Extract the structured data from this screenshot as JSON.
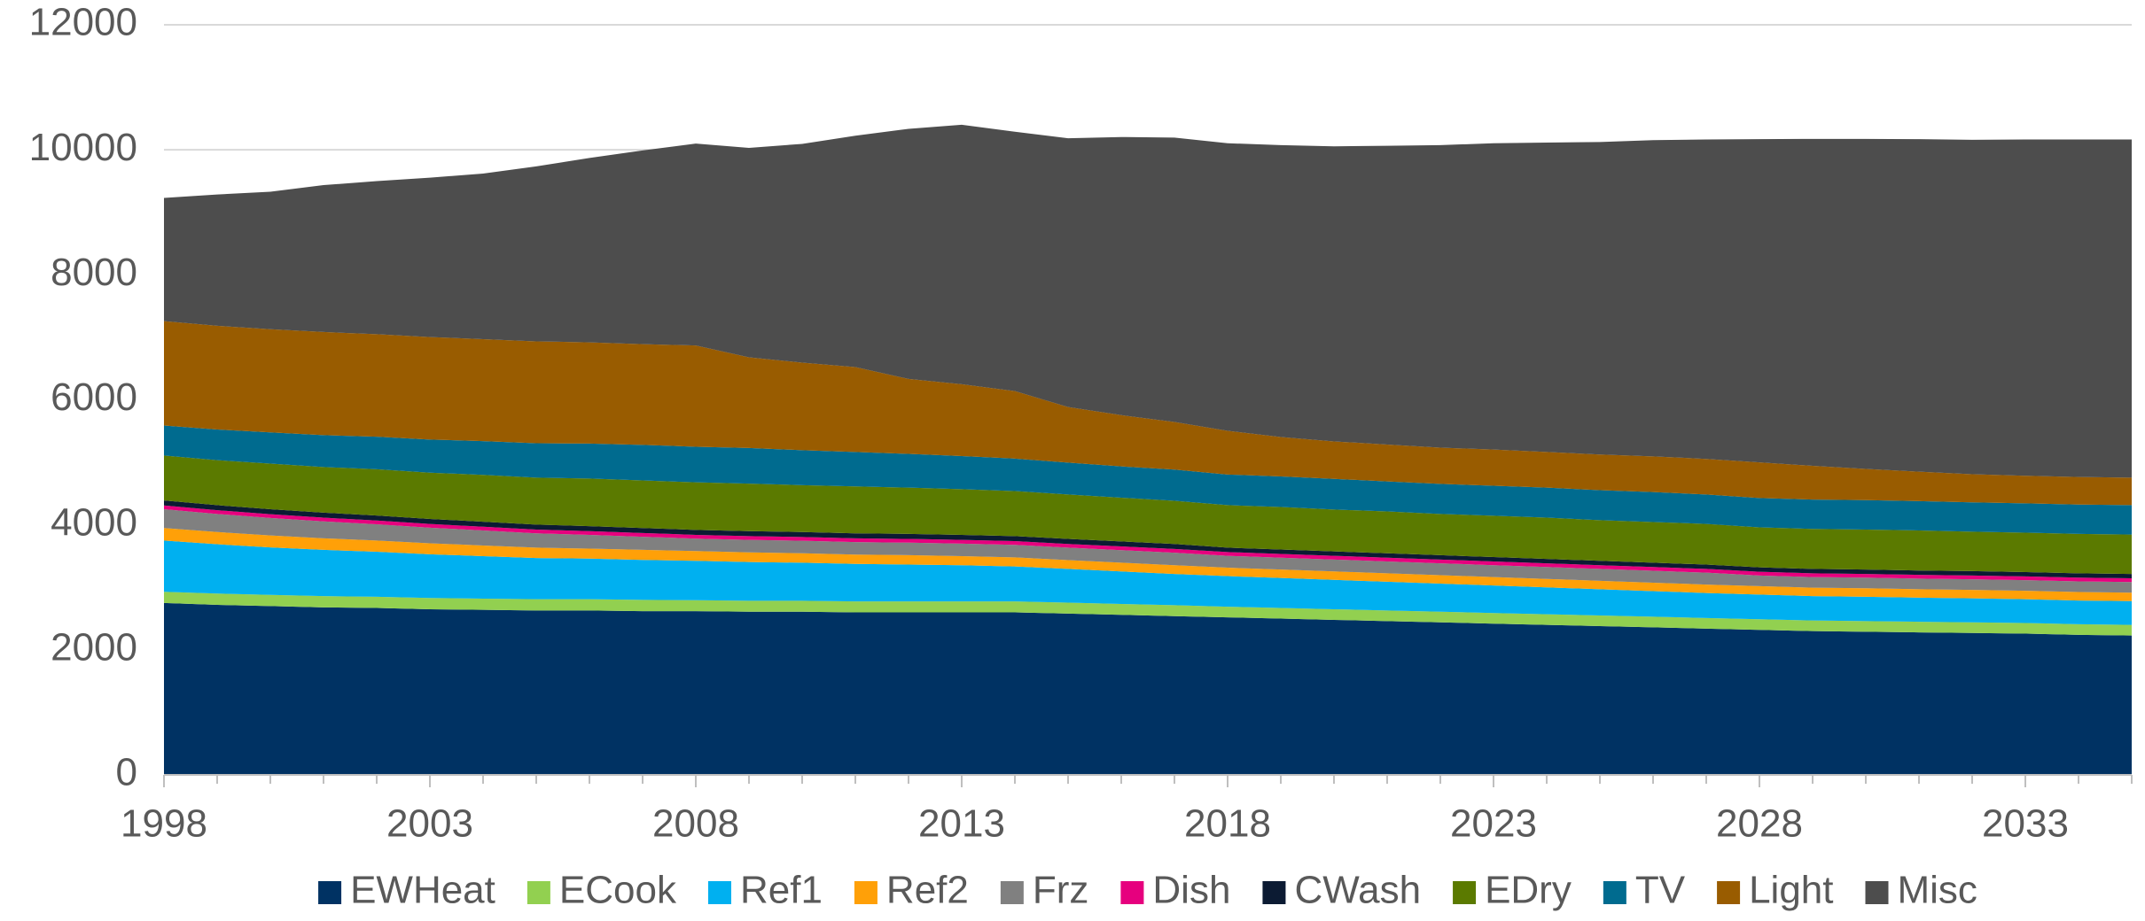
{
  "chart_data": {
    "type": "stacked_area",
    "x": [
      1998,
      1999,
      2000,
      2001,
      2002,
      2003,
      2004,
      2005,
      2006,
      2007,
      2008,
      2009,
      2010,
      2011,
      2012,
      2013,
      2014,
      2015,
      2016,
      2017,
      2018,
      2019,
      2020,
      2021,
      2022,
      2023,
      2024,
      2025,
      2026,
      2027,
      2028,
      2029,
      2030,
      2031,
      2032,
      2033,
      2034,
      2035
    ],
    "xlim": [
      1998,
      2035
    ],
    "xticks": [
      1998,
      2003,
      2008,
      2013,
      2018,
      2023,
      2028,
      2033
    ],
    "ylim": [
      0,
      12000
    ],
    "yticks": [
      0,
      2000,
      4000,
      6000,
      8000,
      10000,
      12000
    ],
    "grid": true,
    "legend": "bottom",
    "series": [
      {
        "name": "EWHeat",
        "color": "#003263",
        "values": [
          2750,
          2720,
          2700,
          2680,
          2670,
          2650,
          2640,
          2630,
          2630,
          2620,
          2620,
          2610,
          2610,
          2600,
          2600,
          2600,
          2600,
          2580,
          2560,
          2540,
          2520,
          2500,
          2480,
          2460,
          2440,
          2420,
          2400,
          2380,
          2360,
          2340,
          2320,
          2300,
          2290,
          2280,
          2270,
          2260,
          2240,
          2230
        ]
      },
      {
        "name": "ECook",
        "color": "#92d050",
        "values": [
          180,
          180,
          180,
          180,
          180,
          180,
          180,
          180,
          180,
          180,
          175,
          175,
          175,
          175,
          175,
          175,
          175,
          175,
          175,
          175,
          170,
          170,
          170,
          170,
          170,
          170,
          170,
          170,
          170,
          170,
          170,
          170,
          170,
          170,
          170,
          170,
          170,
          170
        ]
      },
      {
        "name": "Ref1",
        "color": "#00b0f0",
        "values": [
          820,
          790,
          760,
          740,
          720,
          700,
          680,
          660,
          650,
          640,
          630,
          620,
          610,
          600,
          590,
          580,
          560,
          540,
          520,
          500,
          490,
          480,
          470,
          460,
          450,
          440,
          430,
          420,
          410,
          400,
          395,
          390,
          390,
          385,
          385,
          380,
          380,
          380
        ]
      },
      {
        "name": "Ref2",
        "color": "#ffa008",
        "values": [
          200,
          195,
          190,
          185,
          180,
          175,
          170,
          165,
          160,
          160,
          155,
          155,
          150,
          150,
          150,
          145,
          145,
          140,
          140,
          140,
          135,
          135,
          135,
          135,
          135,
          135,
          135,
          135,
          135,
          135,
          135,
          135,
          135,
          135,
          135,
          135,
          135,
          135
        ]
      },
      {
        "name": "Frz",
        "color": "#808080",
        "values": [
          300,
          290,
          280,
          270,
          260,
          250,
          240,
          230,
          220,
          210,
          200,
          200,
          200,
          200,
          200,
          200,
          200,
          200,
          200,
          200,
          190,
          190,
          190,
          190,
          190,
          190,
          190,
          190,
          190,
          190,
          170,
          170,
          170,
          170,
          170,
          170,
          170,
          170
        ]
      },
      {
        "name": "Dish",
        "color": "#e6007e",
        "values": [
          60,
          60,
          60,
          60,
          60,
          60,
          60,
          60,
          60,
          60,
          60,
          60,
          60,
          60,
          60,
          60,
          60,
          60,
          60,
          60,
          60,
          60,
          60,
          60,
          60,
          60,
          60,
          60,
          60,
          60,
          60,
          60,
          60,
          60,
          60,
          60,
          60,
          60
        ]
      },
      {
        "name": "CWash",
        "color": "#0c1b33",
        "values": [
          80,
          80,
          80,
          80,
          80,
          80,
          80,
          80,
          80,
          80,
          80,
          80,
          80,
          80,
          80,
          80,
          80,
          80,
          80,
          80,
          70,
          70,
          70,
          70,
          70,
          70,
          70,
          70,
          70,
          70,
          70,
          70,
          70,
          70,
          70,
          70,
          70,
          70
        ]
      },
      {
        "name": "EDry",
        "color": "#5b7a00",
        "values": [
          720,
          720,
          730,
          730,
          740,
          740,
          750,
          750,
          760,
          760,
          760,
          760,
          750,
          750,
          740,
          730,
          720,
          710,
          700,
          690,
          680,
          680,
          670,
          670,
          660,
          660,
          660,
          650,
          650,
          650,
          640,
          640,
          640,
          640,
          630,
          630,
          630,
          630
        ]
      },
      {
        "name": "TV",
        "color": "#006b8f",
        "values": [
          480,
          490,
          500,
          510,
          520,
          530,
          540,
          550,
          560,
          570,
          570,
          570,
          560,
          550,
          540,
          530,
          520,
          510,
          500,
          500,
          490,
          490,
          490,
          480,
          480,
          480,
          480,
          480,
          480,
          470,
          470,
          470,
          470,
          470,
          470,
          470,
          470,
          470
        ]
      },
      {
        "name": "Light",
        "color": "#995c00",
        "values": [
          1670,
          1660,
          1650,
          1650,
          1640,
          1640,
          1630,
          1630,
          1620,
          1610,
          1620,
          1450,
          1400,
          1360,
          1200,
          1150,
          1080,
          890,
          820,
          760,
          700,
          630,
          600,
          590,
          580,
          580,
          570,
          570,
          570,
          570,
          570,
          540,
          500,
          470,
          450,
          440,
          440,
          440
        ]
      },
      {
        "name": "Misc",
        "color": "#4d4d4d",
        "values": [
          1970,
          2100,
          2200,
          2350,
          2450,
          2550,
          2650,
          2800,
          2950,
          3100,
          3230,
          3350,
          3500,
          3700,
          4000,
          4150,
          4150,
          4300,
          4450,
          4550,
          4600,
          4670,
          4720,
          4780,
          4840,
          4900,
          4950,
          5000,
          5060,
          5110,
          5170,
          5230,
          5280,
          5320,
          5350,
          5380,
          5400,
          5410
        ]
      }
    ]
  }
}
